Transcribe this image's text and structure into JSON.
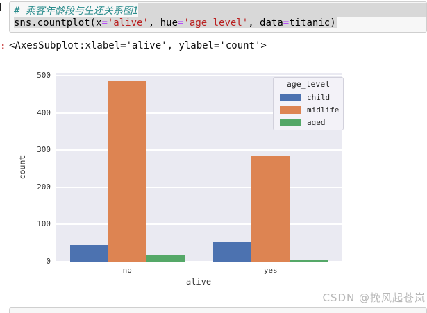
{
  "code_cell": {
    "gutter_glyph": "H",
    "comment": "# 乘客年龄段与生还关系图1",
    "code_tokens": [
      {
        "t": "sns.countplot(x",
        "c": "plain"
      },
      {
        "t": "=",
        "c": "operator"
      },
      {
        "t": "'alive'",
        "c": "string"
      },
      {
        "t": ", hue",
        "c": "plain"
      },
      {
        "t": "=",
        "c": "operator"
      },
      {
        "t": "'age_level'",
        "c": "string"
      },
      {
        "t": ", data",
        "c": "plain"
      },
      {
        "t": "=",
        "c": "operator"
      },
      {
        "t": "titanic)",
        "c": "plain"
      }
    ]
  },
  "output": {
    "prompt_fragment": ":",
    "repr_text": "<AxesSubplot:xlabel='alive', ylabel='count'>"
  },
  "chart_data": {
    "type": "bar",
    "title": "",
    "xlabel": "alive",
    "ylabel": "count",
    "categories": [
      "no",
      "yes"
    ],
    "series": [
      {
        "name": "child",
        "color": "#4c72b0",
        "values": [
          45,
          54
        ]
      },
      {
        "name": "midlife",
        "color": "#dd8452",
        "values": [
          487,
          283
        ]
      },
      {
        "name": "aged",
        "color": "#55a868",
        "values": [
          17,
          5
        ]
      }
    ],
    "ylim": [
      0,
      508
    ],
    "yticks": [
      0,
      100,
      200,
      300,
      400,
      500
    ],
    "legend_title": "age_level",
    "legend_position": "upper right",
    "grid": true,
    "plot_bg": "#eaeaf2",
    "grid_color": "#ffffff"
  },
  "watermark": "CSDN @挽风起苍岚",
  "colors": {
    "comment": "#2a8c8c",
    "string": "#ba2121",
    "operator": "#aa22ff",
    "plain": "#000000",
    "selection": "#d8d8d8",
    "cell_bg": "#f7f7f7",
    "out_prompt": "#cc4c4c",
    "tick_label": "#333333",
    "watermark": "#b8b8b8"
  }
}
